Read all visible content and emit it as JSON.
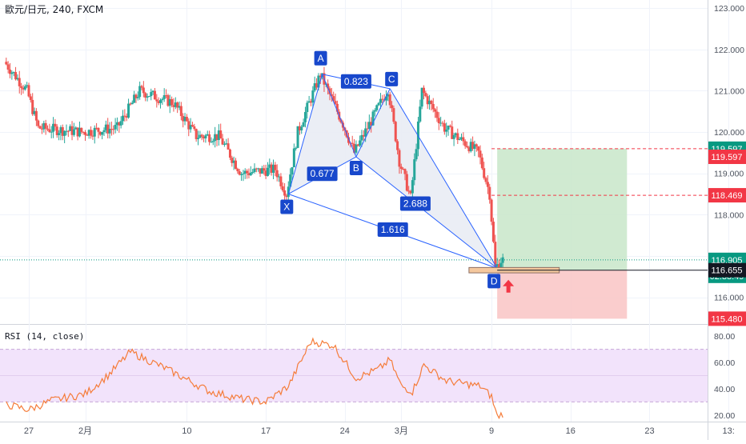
{
  "symbol_title": "歐元/日元, 240, FXCM",
  "rsi_title": "RSI (14, close)",
  "colors": {
    "up": "#26a69a",
    "down": "#ef5350",
    "pattern": "#2962ff",
    "pattern_fill": "#e9ecf4",
    "badge": "#1848cc",
    "rsi_line": "#f57c3a",
    "rsi_band": "#f2e3fb",
    "rsi_dash": "#c6a6d8",
    "target_zone": "#c8e6c9",
    "stop_zone": "#f9c4c4",
    "entry_box": "#f5c89e",
    "price_green": "#089981",
    "price_red": "#f23645",
    "price_dark": "#131722",
    "arrow": "#f23645"
  },
  "chart_data": {
    "type": "candlestick",
    "price_axis": {
      "range": [
        115.1,
        123.1
      ],
      "ticks": [
        "123.000",
        "122.000",
        "121.000",
        "120.000",
        "119.000",
        "118.000",
        "117.000",
        "116.000"
      ]
    },
    "x_axis": {
      "first_candle_date": "2021-01-25",
      "candle_hours": 4,
      "ticks": [
        {
          "label": "27",
          "date": "2021-01-27"
        },
        {
          "label": "2月",
          "date": "2021-02-01"
        },
        {
          "label": "10",
          "date": "2021-02-10"
        },
        {
          "label": "17",
          "date": "2021-02-17"
        },
        {
          "label": "24",
          "date": "2021-02-24"
        },
        {
          "label": "3月",
          "date": "2021-03-01"
        },
        {
          "label": "9",
          "date": "2021-03-09"
        },
        {
          "label": "16",
          "date": "2021-03-16"
        },
        {
          "label": "23",
          "date": "2021-03-23"
        },
        {
          "label": "13:",
          "date": "2021-03-30"
        }
      ]
    },
    "price_path": [
      {
        "date": "2021-01-25",
        "price": 121.7
      },
      {
        "date": "2021-01-27",
        "price": 121.0
      },
      {
        "date": "2021-01-28",
        "price": 120.1
      },
      {
        "date": "2021-02-01",
        "price": 120.0
      },
      {
        "date": "2021-02-04",
        "price": 120.1
      },
      {
        "date": "2021-02-06",
        "price": 121.0
      },
      {
        "date": "2021-02-09",
        "price": 120.7
      },
      {
        "date": "2021-02-11",
        "price": 119.9
      },
      {
        "date": "2021-02-13",
        "price": 119.9
      },
      {
        "date": "2021-02-15",
        "price": 119.0
      },
      {
        "date": "2021-02-18",
        "price": 119.1
      },
      {
        "date": "2021-02-19",
        "price": 118.5
      },
      {
        "date": "2021-02-20",
        "price": 120.0
      },
      {
        "date": "2021-02-22",
        "price": 121.4
      },
      {
        "date": "2021-02-24",
        "price": 120.2
      },
      {
        "date": "2021-02-25",
        "price": 119.5
      },
      {
        "date": "2021-02-28",
        "price": 121.05
      },
      {
        "date": "2021-03-01",
        "price": 119.3
      },
      {
        "date": "2021-03-02",
        "price": 118.4
      },
      {
        "date": "2021-03-03",
        "price": 121.0
      },
      {
        "date": "2021-03-05",
        "price": 120.1
      },
      {
        "date": "2021-03-08",
        "price": 119.5
      },
      {
        "date": "2021-03-09",
        "price": 118.5
      },
      {
        "date": "2021-03-09T12",
        "price": 116.7
      },
      {
        "date": "2021-03-10",
        "price": 116.9
      }
    ],
    "rsi": {
      "range": [
        15,
        85
      ],
      "ticks": [
        "80.00",
        "60.00",
        "40.00",
        "20.00"
      ],
      "band": [
        30,
        70
      ],
      "path": [
        {
          "date": "2021-01-25",
          "value": 28
        },
        {
          "date": "2021-01-27",
          "value": 24
        },
        {
          "date": "2021-01-29",
          "value": 31
        },
        {
          "date": "2021-02-01",
          "value": 36
        },
        {
          "date": "2021-02-03",
          "value": 50
        },
        {
          "date": "2021-02-05",
          "value": 68
        },
        {
          "date": "2021-02-08",
          "value": 56
        },
        {
          "date": "2021-02-10",
          "value": 47
        },
        {
          "date": "2021-02-12",
          "value": 38
        },
        {
          "date": "2021-02-15",
          "value": 32
        },
        {
          "date": "2021-02-17",
          "value": 30
        },
        {
          "date": "2021-02-19",
          "value": 42
        },
        {
          "date": "2021-02-21",
          "value": 76
        },
        {
          "date": "2021-02-23",
          "value": 73
        },
        {
          "date": "2021-02-25",
          "value": 48
        },
        {
          "date": "2021-02-27",
          "value": 55
        },
        {
          "date": "2021-02-28",
          "value": 62
        },
        {
          "date": "2021-03-01",
          "value": 42
        },
        {
          "date": "2021-03-02",
          "value": 38
        },
        {
          "date": "2021-03-03",
          "value": 58
        },
        {
          "date": "2021-03-05",
          "value": 46
        },
        {
          "date": "2021-03-08",
          "value": 42
        },
        {
          "date": "2021-03-09",
          "value": 34
        },
        {
          "date": "2021-03-09T12",
          "value": 19
        },
        {
          "date": "2021-03-10",
          "value": 21
        }
      ]
    },
    "harmonic_pattern": {
      "points": [
        {
          "label": "X",
          "date": "2021-02-19",
          "price": 118.5
        },
        {
          "label": "A",
          "date": "2021-02-22",
          "price": 121.4
        },
        {
          "label": "B",
          "date": "2021-02-25",
          "price": 119.4
        },
        {
          "label": "C",
          "date": "2021-02-28",
          "price": 121.05
        },
        {
          "label": "D",
          "date": "2021-03-09T12",
          "price": 116.7
        }
      ],
      "ratios": [
        {
          "label": "0.823",
          "from": "A",
          "to": "C"
        },
        {
          "label": "0.677",
          "from": "X",
          "to": "B"
        },
        {
          "label": "2.688",
          "from": "B",
          "to": "D"
        },
        {
          "label": "1.616",
          "from": "X",
          "to": "D"
        }
      ]
    },
    "position": {
      "start": "2021-03-09T12",
      "end": "2021-03-21",
      "target": 119.597,
      "entry": 116.655,
      "stop": 115.48,
      "zone_label": "116.655"
    },
    "entry_box": {
      "start": "2021-03-07",
      "end": "2021-03-15",
      "low": 116.59,
      "high": 116.72
    },
    "dashed_levels": [
      {
        "price": 119.597,
        "start": "2021-03-09"
      },
      {
        "price": 118.469,
        "start": "2021-03-09"
      }
    ],
    "current_price_line": 116.905,
    "price_labels": [
      {
        "text": "119.597",
        "price": 119.597,
        "style": "green"
      },
      {
        "text": "119.597",
        "price": 119.4,
        "style": "red"
      },
      {
        "text": "118.469",
        "price": 118.469,
        "style": "red"
      },
      {
        "text": "116.905",
        "price": 116.905,
        "style": "green"
      },
      {
        "text": "02:38:49",
        "price": 116.905,
        "style": "green-sub"
      },
      {
        "text": "116.655",
        "price": 116.655,
        "style": "dark"
      },
      {
        "text": "115.480",
        "price": 115.48,
        "style": "red"
      }
    ]
  }
}
